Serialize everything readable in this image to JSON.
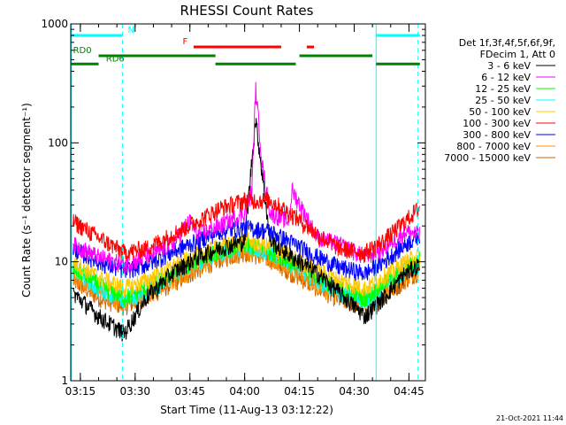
{
  "chart_data": {
    "type": "line",
    "title": "RHESSI Count Rates",
    "xlabel": "Start Time (11-Aug-13 03:12:22)",
    "ylabel": "Count Rate (s⁻¹ detector segment⁻¹)",
    "xlim": [
      "03:12:22",
      "04:49:30"
    ],
    "ylim": [
      1,
      1000
    ],
    "y_scale": "log",
    "x_tick_labels": [
      "03:15",
      "03:30",
      "03:45",
      "04:00",
      "04:15",
      "04:30",
      "04:45"
    ],
    "y_tick_labels": [
      "1",
      "10",
      "100",
      "1000"
    ],
    "legend_header": [
      "Det 1f,3f,4f,5f,6f,9f,",
      "FDecim 1, Att 0"
    ],
    "legend_position": "right",
    "series": [
      {
        "name": "3 - 6 keV",
        "color": "#000000",
        "times": [
          "03:13",
          "03:20",
          "03:27",
          "03:33",
          "03:40",
          "03:47",
          "03:53",
          "04:00",
          "04:03",
          "04:07",
          "04:13",
          "04:20",
          "04:26",
          "04:33",
          "04:38",
          "04:44",
          "04:48"
        ],
        "values": [
          5.5,
          3.5,
          2.5,
          5,
          8,
          11,
          13,
          15,
          160,
          15,
          11,
          8,
          5.5,
          3.5,
          5,
          8,
          9.5
        ]
      },
      {
        "name": "6 - 12 keV",
        "color": "#ff00ff",
        "times": [
          "03:13",
          "03:20",
          "03:27",
          "03:33",
          "03:40",
          "03:45",
          "03:47",
          "03:53",
          "04:00",
          "04:02",
          "04:03",
          "04:05",
          "04:07",
          "04:12",
          "04:13",
          "04:20",
          "04:26",
          "04:33",
          "04:38",
          "04:44",
          "04:48"
        ],
        "values": [
          14,
          11,
          9.5,
          11,
          14,
          22,
          17,
          20,
          26,
          40,
          290,
          60,
          26,
          22,
          40,
          16,
          14,
          11,
          13,
          18,
          17
        ]
      },
      {
        "name": "12 - 25 keV",
        "color": "#00ff00",
        "times": [
          "03:13",
          "03:20",
          "03:27",
          "03:33",
          "03:40",
          "03:47",
          "03:53",
          "04:00",
          "04:07",
          "04:13",
          "04:20",
          "04:26",
          "04:33",
          "04:38",
          "04:44",
          "04:48"
        ],
        "values": [
          9,
          6.5,
          5,
          6,
          8,
          10.5,
          12.5,
          14,
          12.5,
          10,
          7.5,
          6,
          5,
          6.5,
          9,
          10.5
        ]
      },
      {
        "name": "25 - 50 keV",
        "color": "#00ffff",
        "times": [
          "03:13",
          "03:20",
          "03:27",
          "03:33",
          "03:40",
          "03:47",
          "03:53",
          "04:00",
          "04:07",
          "04:13",
          "04:20",
          "04:26",
          "04:33",
          "04:38",
          "04:44",
          "04:48"
        ],
        "values": [
          8.5,
          6,
          4.8,
          5.5,
          7.5,
          10,
          12,
          13.5,
          12,
          9.5,
          7,
          5.5,
          4.8,
          6,
          8.5,
          10
        ]
      },
      {
        "name": "50 - 100 keV",
        "color": "#ffc800",
        "times": [
          "03:13",
          "03:20",
          "03:27",
          "03:33",
          "03:40",
          "03:47",
          "03:53",
          "04:00",
          "04:07",
          "04:13",
          "04:20",
          "04:26",
          "04:33",
          "04:38",
          "04:44",
          "04:48"
        ],
        "values": [
          10,
          7.5,
          6,
          7,
          9,
          11.5,
          13.5,
          15,
          13.5,
          11,
          8.5,
          7,
          6,
          7.5,
          10,
          11.5
        ]
      },
      {
        "name": "100 - 300 keV",
        "color": "#ff0000",
        "times": [
          "03:13",
          "03:20",
          "03:27",
          "03:33",
          "03:40",
          "03:47",
          "03:53",
          "04:00",
          "04:07",
          "04:13",
          "04:20",
          "04:26",
          "04:33",
          "04:38",
          "04:44",
          "04:48"
        ],
        "values": [
          22,
          16,
          12,
          13,
          17,
          22,
          28,
          33,
          33,
          25,
          17,
          13,
          12,
          15,
          22,
          29
        ]
      },
      {
        "name": "300 - 800 keV",
        "color": "#0000ff",
        "times": [
          "03:13",
          "03:20",
          "03:27",
          "03:33",
          "03:40",
          "03:47",
          "03:53",
          "04:00",
          "04:07",
          "04:13",
          "04:20",
          "04:26",
          "04:33",
          "04:38",
          "04:44",
          "04:48"
        ],
        "values": [
          13,
          10,
          8.5,
          9.5,
          12,
          15,
          18,
          19.5,
          18,
          14.5,
          11,
          9,
          8,
          10,
          14,
          17
        ]
      },
      {
        "name": "800 - 7000 keV",
        "color": "#ff8c00",
        "times": [
          "03:13",
          "03:20",
          "03:27",
          "03:33",
          "03:40",
          "03:47",
          "03:53",
          "04:00",
          "04:07",
          "04:13",
          "04:20",
          "04:26",
          "04:33",
          "04:38",
          "04:44",
          "04:48"
        ],
        "values": [
          7.5,
          5.5,
          4.5,
          5.2,
          7,
          9,
          11,
          12.5,
          11,
          8.5,
          6.5,
          5,
          4.5,
          5.5,
          7.5,
          9
        ]
      },
      {
        "name": "7000 - 15000 keV",
        "color": "#c86400",
        "times": [
          "03:13",
          "03:20",
          "03:27",
          "03:33",
          "03:40",
          "03:47",
          "03:53",
          "04:00",
          "04:07",
          "04:13",
          "04:20",
          "04:26",
          "04:33",
          "04:38",
          "04:44",
          "04:48"
        ],
        "values": [
          7,
          5,
          4.2,
          5,
          6.5,
          8.5,
          10.5,
          12,
          10.5,
          8,
          6,
          4.8,
          4.2,
          5,
          7,
          8.5
        ]
      }
    ],
    "vertical_markers": [
      {
        "time": "03:12:30",
        "color": "#00ffff",
        "style": "solid"
      },
      {
        "time": "03:26:30",
        "color": "#00ffff",
        "style": "dashed"
      },
      {
        "time": "04:36:00",
        "color": "#00ffff",
        "style": "solid"
      },
      {
        "time": "04:47:30",
        "color": "#00ffff",
        "style": "dashed"
      }
    ],
    "flag_bars": [
      {
        "label": "N",
        "color": "#00ffff",
        "level": 800,
        "label_time": "03:28",
        "segments": [
          [
            "03:12:30",
            "03:26:30"
          ],
          [
            "04:36:00",
            "04:48:00"
          ]
        ]
      },
      {
        "label": "F",
        "color": "#ff0000",
        "level": 640,
        "label_time": "03:43",
        "segments": [
          [
            "03:46",
            "04:10"
          ],
          [
            "04:17",
            "04:19"
          ]
        ]
      },
      {
        "label": "RD0",
        "color": "#008000",
        "level": 540,
        "label_time": "03:13",
        "segments": [
          [
            "03:20",
            "03:52"
          ],
          [
            "04:15",
            "04:35"
          ]
        ]
      },
      {
        "label": "RD6",
        "color": "#008000",
        "level": 460,
        "label_time": "03:22",
        "segments": [
          [
            "03:12:30",
            "03:20"
          ],
          [
            "03:52",
            "04:14"
          ],
          [
            "04:36",
            "04:48"
          ]
        ]
      }
    ],
    "grid": false
  },
  "footer": {
    "timestamp": "21-Oct-2021 11:44"
  }
}
